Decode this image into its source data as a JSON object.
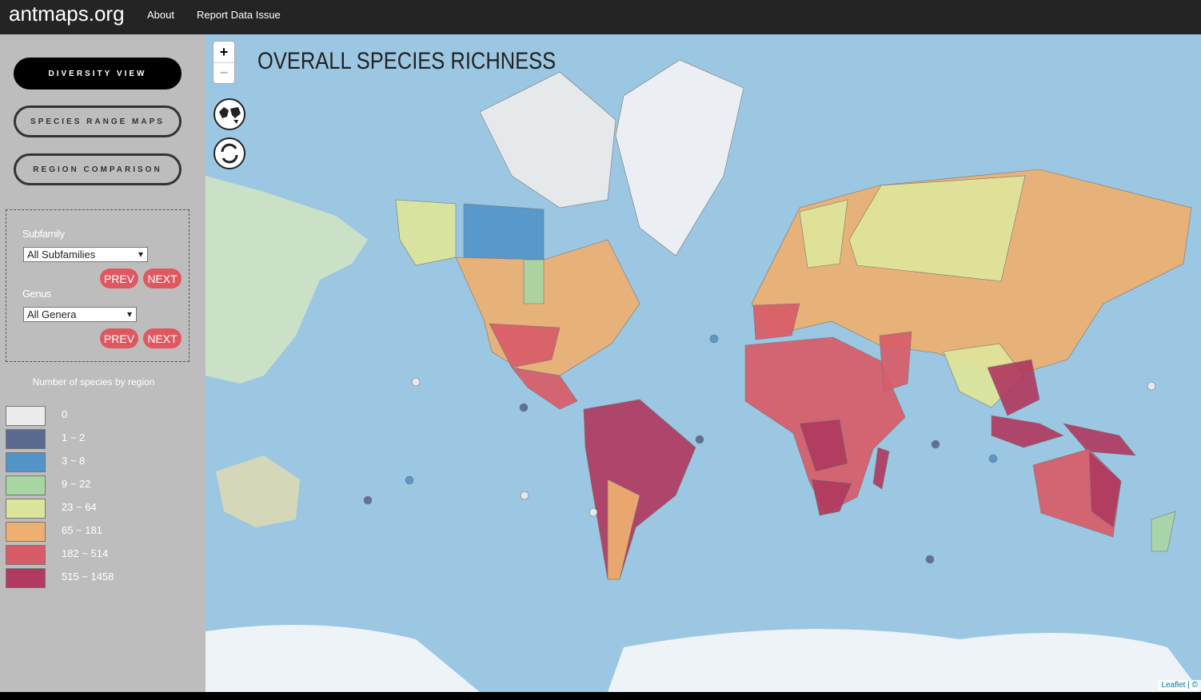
{
  "header": {
    "brand": "antmaps.org",
    "links": [
      "About",
      "Report Data Issue"
    ]
  },
  "sidebar": {
    "views": [
      "DIVERSITY VIEW",
      "SPECIES RANGE MAPS",
      "REGION COMPARISON"
    ],
    "filters": [
      {
        "label": "Subfamily",
        "selected": "All Subfamilies",
        "prev": "PREV",
        "next": "NEXT"
      },
      {
        "label": "Genus",
        "selected": "All Genera",
        "prev": "PREV",
        "next": "NEXT"
      }
    ],
    "legend": {
      "title": "Number of species by region",
      "items": [
        {
          "label": "0",
          "color": "#ebebed"
        },
        {
          "label": "1 ~ 2",
          "color": "#5a6a8f"
        },
        {
          "label": "3 ~ 8",
          "color": "#5394c8"
        },
        {
          "label": "9 ~ 22",
          "color": "#a8d5a4"
        },
        {
          "label": "23 ~ 64",
          "color": "#dde59a"
        },
        {
          "label": "65 ~ 181",
          "color": "#eeb070"
        },
        {
          "label": "182 ~ 514",
          "color": "#d85c68"
        },
        {
          "label": "515 ~ 1458",
          "color": "#b03a60"
        }
      ]
    }
  },
  "map": {
    "title": "OVERALL SPECIES RICHNESS",
    "zoom_in": "+",
    "zoom_out": "−",
    "attribution": [
      "Leaflet",
      "©"
    ]
  }
}
